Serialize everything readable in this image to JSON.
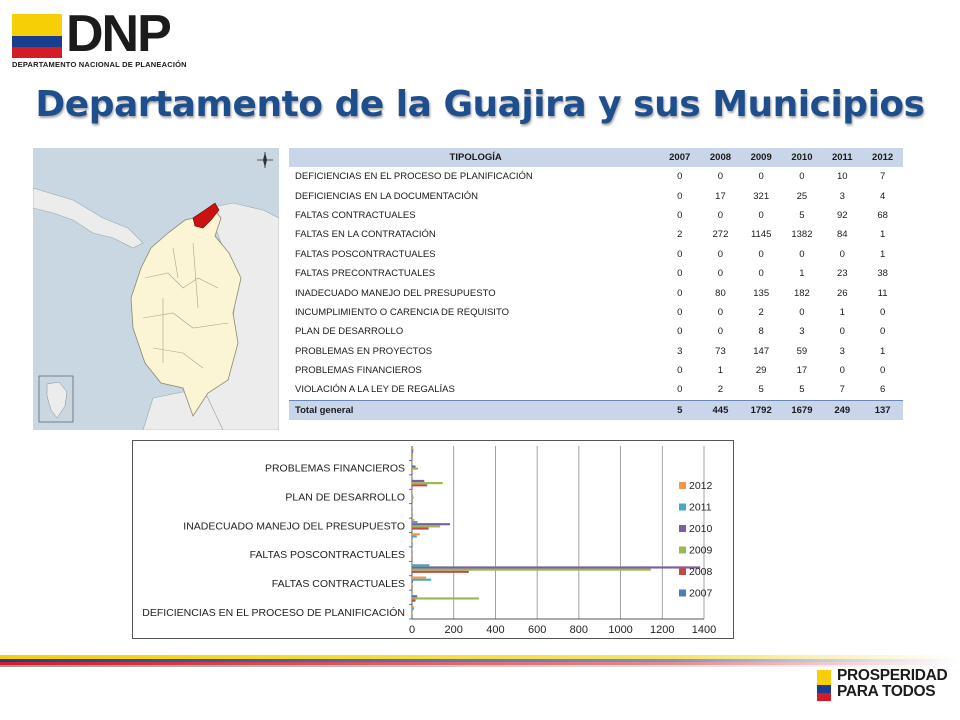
{
  "header": {
    "logo_word": "DNP",
    "logo_subtitle": "DEPARTAMENTO NACIONAL DE PLANEACIÓN",
    "flag_colors": [
      "#f6cf06",
      "#1a3e8f",
      "#d21d27"
    ]
  },
  "title": "Departamento de la Guajira y sus Municipios",
  "map": {
    "icon": "colombia-map-guajira-highlight",
    "highlight_color": "#cc1111"
  },
  "table": {
    "headers": [
      "TIPOLOGÍA",
      "2007",
      "2008",
      "2009",
      "2010",
      "2011",
      "2012"
    ],
    "rows": [
      [
        "DEFICIENCIAS  EN EL PROCESO DE PLANIFICACIÓN",
        "0",
        "0",
        "0",
        "0",
        "10",
        "7"
      ],
      [
        "DEFICIENCIAS  EN LA DOCUMENTACIÓN",
        "0",
        "17",
        "321",
        "25",
        "3",
        "4"
      ],
      [
        "FALTAS CONTRACTUALES",
        "0",
        "0",
        "0",
        "5",
        "92",
        "68"
      ],
      [
        "FALTAS EN LA CONTRATACIÓN",
        "2",
        "272",
        "1145",
        "1382",
        "84",
        "1"
      ],
      [
        "FALTAS POSCONTRACTUALES",
        "0",
        "0",
        "0",
        "0",
        "0",
        "1"
      ],
      [
        "FALTAS PRECONTRACTUALES",
        "0",
        "0",
        "0",
        "1",
        "23",
        "38"
      ],
      [
        "INADECUADO  MANEJO DEL PRESUPUESTO",
        "0",
        "80",
        "135",
        "182",
        "26",
        "11"
      ],
      [
        "INCUMPLIMIENTO  O CARENCIA DE REQUISITO",
        "0",
        "0",
        "2",
        "0",
        "1",
        "0"
      ],
      [
        "PLAN DE DESARROLLO",
        "0",
        "0",
        "8",
        "3",
        "0",
        "0"
      ],
      [
        "PROBLEMAS EN  PROYECTOS",
        "3",
        "73",
        "147",
        "59",
        "3",
        "1"
      ],
      [
        "PROBLEMAS FINANCIEROS",
        "0",
        "1",
        "29",
        "17",
        "0",
        "0"
      ],
      [
        "VIOLACIÓN A LA LEY DE REGALÍAS",
        "0",
        "2",
        "5",
        "5",
        "7",
        "6"
      ]
    ],
    "total": [
      "Total general",
      "5",
      "445",
      "1792",
      "1679",
      "249",
      "137"
    ]
  },
  "chart_data": {
    "type": "bar",
    "orientation": "horizontal",
    "categories": [
      "DEFICIENCIAS EN EL PROCESO DE PLANIFICACIÓN",
      "DEFICIENCIAS EN LA DOCUMENTACIÓN",
      "FALTAS CONTRACTUALES",
      "FALTAS EN LA CONTRATACIÓN",
      "FALTAS POSCONTRACTUALES",
      "FALTAS PRECONTRACTUALES",
      "INADECUADO MANEJO DEL PRESUPUESTO",
      "INCUMPLIMIENTO O CARENCIA DE REQUISITO",
      "PLAN DE DESARROLLO",
      "PROBLEMAS EN PROYECTOS",
      "PROBLEMAS FINANCIEROS",
      "VIOLACIÓN A LA LEY DE REGALÍAS"
    ],
    "visible_category_labels": [
      "DEFICIENCIAS EN EL PROCESO DE PLANIFICACIÓN",
      "FALTAS CONTRACTUALES",
      "FALTAS POSCONTRACTUALES",
      "INADECUADO MANEJO DEL PRESUPUESTO",
      "PLAN DE DESARROLLO",
      "PROBLEMAS FINANCIEROS"
    ],
    "series": [
      {
        "name": "2007",
        "color": "#4a7ebb",
        "values": [
          0,
          0,
          0,
          2,
          0,
          0,
          0,
          0,
          0,
          3,
          0,
          0
        ]
      },
      {
        "name": "2008",
        "color": "#be4b48",
        "values": [
          0,
          17,
          0,
          272,
          0,
          0,
          80,
          0,
          0,
          73,
          1,
          2
        ]
      },
      {
        "name": "2009",
        "color": "#98b954",
        "values": [
          0,
          321,
          0,
          1145,
          0,
          0,
          135,
          2,
          8,
          147,
          29,
          5
        ]
      },
      {
        "name": "2010",
        "color": "#7d5fa0",
        "values": [
          0,
          25,
          5,
          1382,
          0,
          1,
          182,
          0,
          3,
          59,
          17,
          5
        ]
      },
      {
        "name": "2011",
        "color": "#46aac5",
        "values": [
          10,
          3,
          92,
          84,
          0,
          23,
          26,
          1,
          0,
          3,
          0,
          7
        ]
      },
      {
        "name": "2012",
        "color": "#f79646",
        "values": [
          7,
          4,
          68,
          1,
          1,
          38,
          11,
          0,
          0,
          1,
          0,
          6
        ]
      }
    ],
    "xlim": [
      0,
      1400
    ],
    "xticks": [
      "0",
      "200",
      "400",
      "600",
      "800",
      "1000",
      "1200",
      "1400"
    ],
    "grid": true,
    "legend": "right"
  },
  "footer": {
    "brand_line1": "PROSPERIDAD",
    "brand_line2": "PARA TODOS"
  }
}
